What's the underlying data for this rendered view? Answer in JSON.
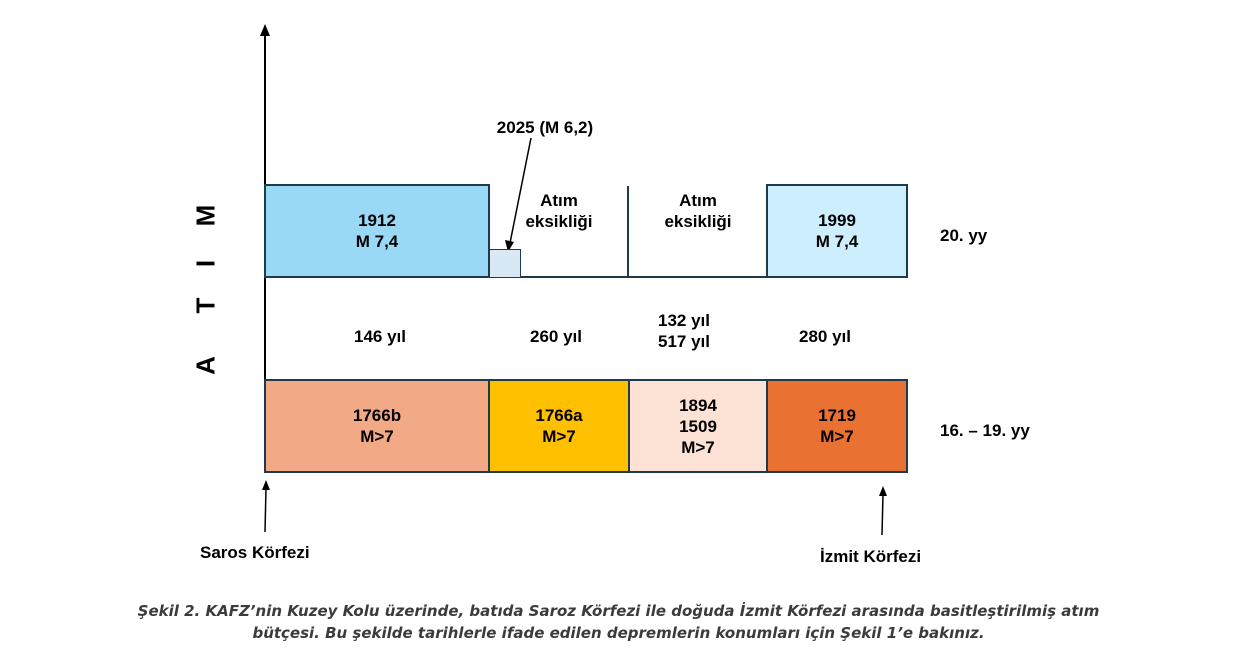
{
  "axis": {
    "label_letters": [
      "A",
      "T",
      "I",
      "M"
    ]
  },
  "top_row": {
    "era_label": "20. yy",
    "seg1": {
      "line1": "1912",
      "line2": "M 7,4",
      "color": "#99d9f5"
    },
    "seg2": {
      "line1": "Atım",
      "line2": "eksikliği"
    },
    "seg3": {
      "line1": "Atım",
      "line2": "eksikliği"
    },
    "seg4": {
      "line1": "1999",
      "line2": "M 7,4",
      "color": "#cdeefc"
    },
    "small_event": {
      "label": "2025 (M 6,2)",
      "color": "#d9e8f5"
    }
  },
  "intervals": {
    "seg1": "146 yıl",
    "seg2": "260 yıl",
    "seg3_line1": "132 yıl",
    "seg3_line2": "517 yıl",
    "seg4": "280 yıl"
  },
  "bottom_row": {
    "era_label": "16. – 19. yy",
    "seg1": {
      "line1": "1766b",
      "line2": "M>7",
      "color": "#f2a985"
    },
    "seg2": {
      "line1": "1766a",
      "line2": "M>7",
      "color": "#ffc000"
    },
    "seg3": {
      "line1": "1894",
      "line2": "1509",
      "line3": "M>7",
      "color": "#fbe2d5"
    },
    "seg4": {
      "line1": "1719",
      "line2": "M>7",
      "color": "#e97132"
    }
  },
  "locations": {
    "west": "Saros Körfezi",
    "east": "İzmit Körfezi"
  },
  "caption": {
    "line1": "Şekil 2. KAFZ’nin Kuzey Kolu üzerinde, batıda Saroz Körfezi ile doğuda İzmit Körfezi arasında basitleştirilmiş atım",
    "line2": "bütçesi. Bu şekilde tarihlerle ifade edilen depremlerin konumları için Şekil 1’e bakınız."
  }
}
